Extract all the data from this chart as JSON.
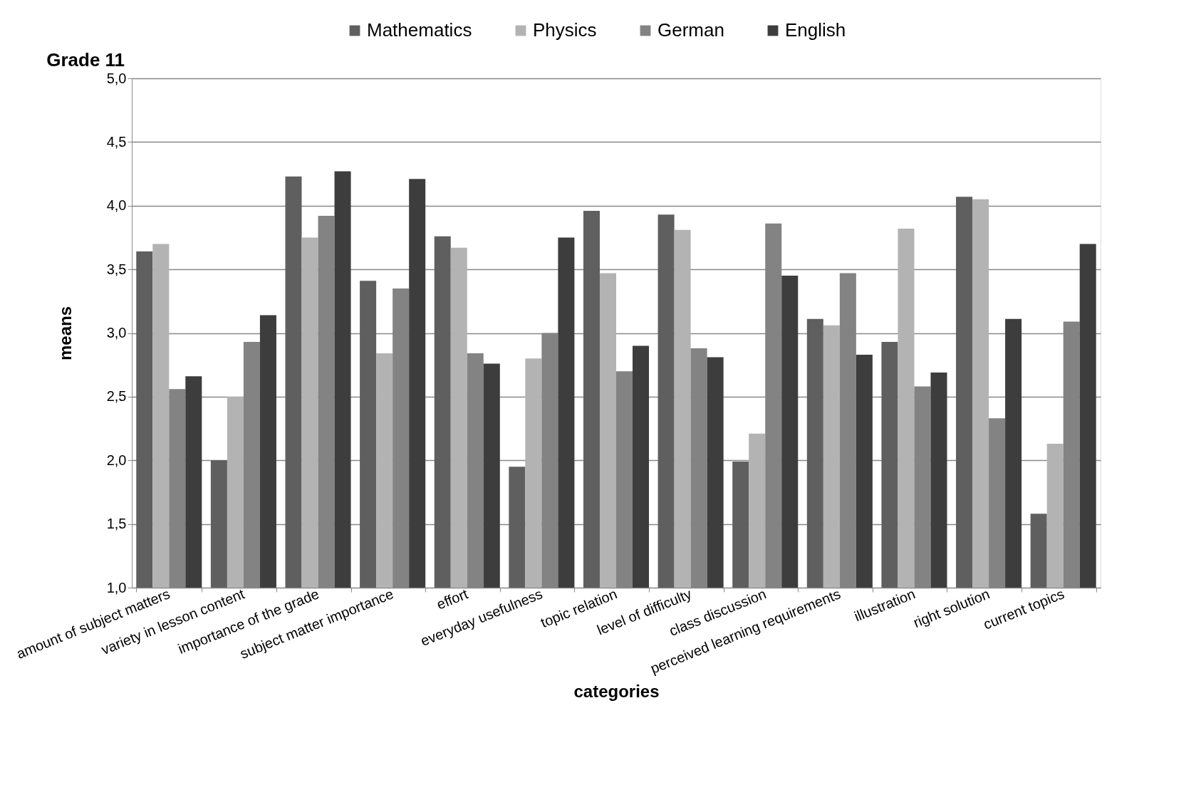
{
  "chart_data": {
    "type": "bar",
    "title": "Grade 11",
    "xlabel": "categories",
    "ylabel": "means",
    "categories": [
      "amount of subject matters",
      "variety in lesson content",
      "importance of the grade",
      "subject matter importance",
      "effort",
      "everyday usefulness",
      "topic relation",
      "level of difficulty",
      "class discussion",
      "perceived learning requirements",
      "illustration",
      "right solution",
      "current topics"
    ],
    "series": [
      {
        "name": "Mathematics",
        "color": "#5f5f5f",
        "values": [
          3.64,
          2.0,
          4.23,
          3.41,
          3.76,
          1.95,
          3.96,
          3.93,
          1.99,
          3.11,
          2.93,
          4.07,
          1.58
        ]
      },
      {
        "name": "Physics",
        "color": "#b3b3b3",
        "values": [
          3.7,
          2.5,
          3.75,
          2.84,
          3.67,
          2.8,
          3.47,
          3.81,
          2.21,
          3.06,
          3.82,
          4.05,
          2.13
        ]
      },
      {
        "name": "German",
        "color": "#838383",
        "values": [
          2.56,
          2.93,
          3.92,
          3.35,
          2.84,
          3.0,
          2.7,
          2.88,
          3.86,
          3.47,
          2.58,
          2.33,
          3.09
        ]
      },
      {
        "name": "English",
        "color": "#3d3d3d",
        "values": [
          2.66,
          3.14,
          4.27,
          4.21,
          2.76,
          3.75,
          2.9,
          2.81,
          3.45,
          2.83,
          2.69,
          3.11,
          3.7
        ]
      }
    ],
    "ylim": [
      1.0,
      5.0
    ],
    "yticks": [
      {
        "value": 1.0,
        "label": "1,0"
      },
      {
        "value": 1.5,
        "label": "1,5"
      },
      {
        "value": 2.0,
        "label": "2,0"
      },
      {
        "value": 2.5,
        "label": "2,5"
      },
      {
        "value": 3.0,
        "label": "3,0"
      },
      {
        "value": 3.5,
        "label": "3,5"
      },
      {
        "value": 4.0,
        "label": "4,0"
      },
      {
        "value": 4.5,
        "label": "4,5"
      },
      {
        "value": 5.0,
        "label": "5,0"
      }
    ],
    "grid": "y",
    "legend": "top"
  }
}
